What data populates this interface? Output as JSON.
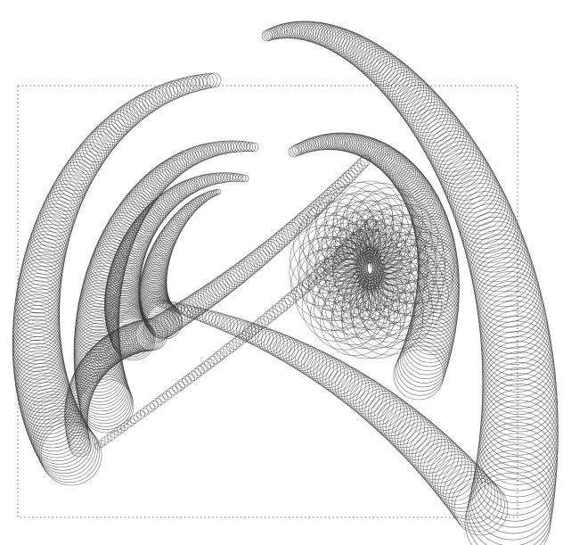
{
  "artwork": {
    "subject": "circles-tube-attractor-drawing",
    "stroke_color": "#3a3a3a",
    "frame_color": "#8a8a8a",
    "background": "#ffffff"
  }
}
